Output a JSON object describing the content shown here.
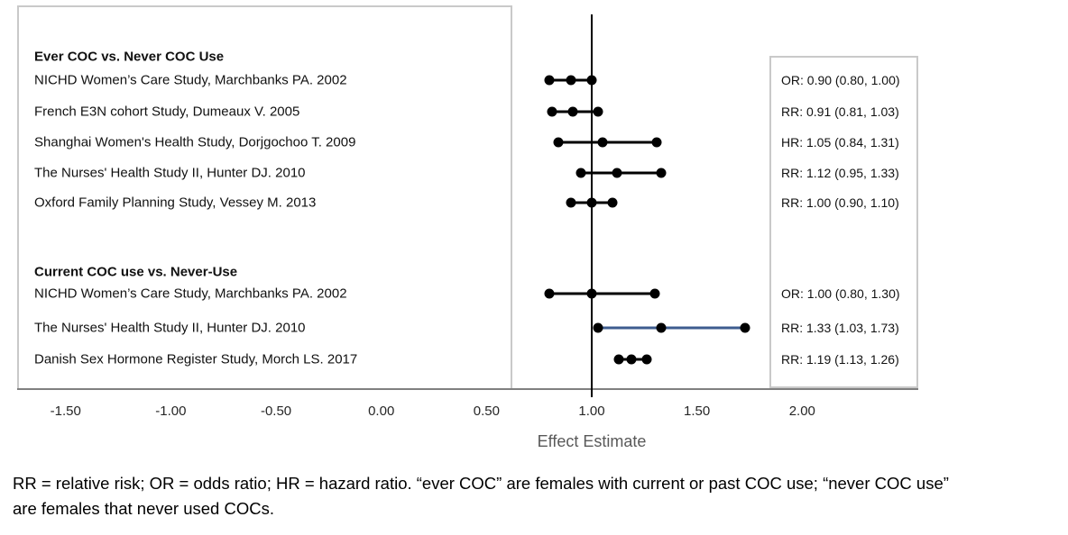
{
  "chart_data": {
    "type": "forest",
    "title": "",
    "xlabel": "Effect Estimate",
    "x_tick_values": [
      -1.5,
      -1.0,
      -0.5,
      0.0,
      0.5,
      1.0,
      1.5,
      2.0
    ],
    "x_tick_labels": [
      "-1.50",
      "-1.00",
      "-0.50",
      "0.00",
      "0.50",
      "1.00",
      "1.50",
      "2.00"
    ],
    "axis_range": [
      -1.73,
      2.55
    ],
    "reference_value": 1.0,
    "grid": false,
    "legend": "none",
    "groups": [
      {
        "header": "Ever COC vs. Never COC Use",
        "studies": [
          {
            "label": "NICHD Women’s Care Study, Marchbanks PA. 2002",
            "measure": "OR",
            "estimate": 0.9,
            "ci_low": 0.8,
            "ci_high": 1.0,
            "estimate_text": "OR: 0.90 (0.80, 1.00)",
            "line_color": "#000000"
          },
          {
            "label": "French E3N cohort Study, Dumeaux V. 2005",
            "measure": "RR",
            "estimate": 0.91,
            "ci_low": 0.81,
            "ci_high": 1.03,
            "estimate_text": "RR: 0.91 (0.81, 1.03)",
            "line_color": "#000000"
          },
          {
            "label": "Shanghai Women's Health Study, Dorjgochoo T. 2009",
            "measure": "HR",
            "estimate": 1.05,
            "ci_low": 0.84,
            "ci_high": 1.31,
            "estimate_text": "HR: 1.05 (0.84, 1.31)",
            "line_color": "#000000"
          },
          {
            "label": "The Nurses' Health Study II, Hunter DJ. 2010",
            "measure": "RR",
            "estimate": 1.12,
            "ci_low": 0.95,
            "ci_high": 1.33,
            "estimate_text": "RR: 1.12 (0.95, 1.33)",
            "line_color": "#000000"
          },
          {
            "label": "Oxford Family Planning Study, Vessey M. 2013",
            "measure": "RR",
            "estimate": 1.0,
            "ci_low": 0.9,
            "ci_high": 1.1,
            "estimate_text": "RR: 1.00 (0.90, 1.10)",
            "line_color": "#000000"
          }
        ]
      },
      {
        "header": "Current COC use vs. Never-Use",
        "studies": [
          {
            "label": "NICHD Women’s Care Study, Marchbanks PA. 2002",
            "measure": "OR",
            "estimate": 1.0,
            "ci_low": 0.8,
            "ci_high": 1.3,
            "estimate_text": "OR: 1.00 (0.80, 1.30)",
            "line_color": "#000000"
          },
          {
            "label": "The Nurses' Health Study II, Hunter DJ. 2010",
            "measure": "RR",
            "estimate": 1.33,
            "ci_low": 1.03,
            "ci_high": 1.73,
            "estimate_text": "RR: 1.33 (1.03, 1.73)",
            "line_color": "#3e5c8f"
          },
          {
            "label": "Danish Sex Hormone Register Study, Morch LS. 2017",
            "measure": "RR",
            "estimate": 1.19,
            "ci_low": 1.13,
            "ci_high": 1.26,
            "estimate_text": "RR: 1.19 (1.13, 1.26)",
            "line_color": "#000000"
          }
        ]
      }
    ],
    "footnote_lines": [
      "RR = relative risk; OR = odds ratio; HR = hazard ratio. “ever COC” are females with current or past COC use; “never COC use”",
      "are females that never used COCs."
    ],
    "colors": {
      "marker": "#000000",
      "reference_line": "#000000",
      "axis_line": "#808080",
      "panel_border": "#c9c9c9",
      "axis_title": "#595959",
      "accent_blue": "#3e5c8f"
    }
  }
}
